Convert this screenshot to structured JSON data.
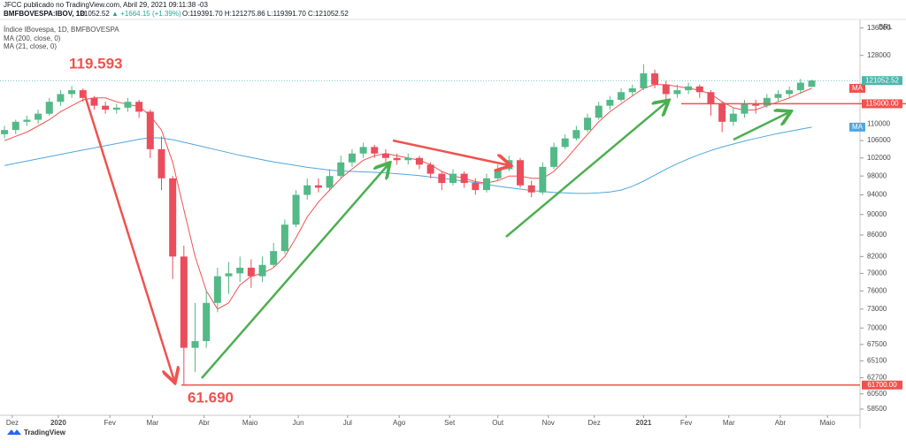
{
  "header": {
    "publisher": "JFCC publicado no TradingView.com, Abril 29, 2021 09:11:38 -03",
    "symbol": "BMFBOVESPA:IBOV, 1D",
    "last": "121052.52",
    "change": "▲ +1664.15 (+1.39%)",
    "ohlc": "O:119391.70 H:121275.86 L:119391.70 C:121052.52"
  },
  "footer": "TradingView",
  "chart_data": {
    "type": "candlestick",
    "title": "Índice IBovespa, 1D, BMFBOVESPA",
    "currency": "BRL",
    "x": [
      0,
      1,
      2,
      3,
      4,
      5,
      6,
      7,
      8,
      9,
      10,
      11,
      12,
      13,
      14,
      15,
      16,
      17,
      18,
      19,
      20,
      21,
      22,
      23,
      24,
      25,
      26,
      27,
      28,
      29,
      30,
      31,
      32,
      33,
      34,
      35,
      36,
      37,
      38,
      39,
      40,
      41,
      42,
      43,
      44,
      45,
      46,
      47,
      48,
      49,
      50,
      51,
      52,
      53,
      54,
      55,
      56,
      57,
      58,
      59,
      60,
      61,
      62,
      63,
      64,
      65,
      66,
      67,
      68,
      69,
      70,
      71,
      72
    ],
    "open": [
      107500,
      108500,
      110500,
      111000,
      112500,
      115500,
      117500,
      118500,
      116500,
      114500,
      113500,
      114000,
      115500,
      113000,
      104000,
      97500,
      82000,
      67000,
      68000,
      74000,
      78500,
      79000,
      80000,
      78500,
      80500,
      83000,
      88000,
      94000,
      96000,
      95500,
      98000,
      101000,
      103000,
      104500,
      103000,
      102000,
      101500,
      102000,
      100500,
      98500,
      96500,
      98500,
      96500,
      95000,
      97500,
      99500,
      101500,
      96000,
      94500,
      100000,
      104500,
      106500,
      108500,
      111500,
      114500,
      116000,
      118000,
      119000,
      123000,
      120000,
      117500,
      118500,
      119500,
      118000,
      115000,
      110500,
      112500,
      115000,
      114500,
      116500,
      117500,
      118500,
      119391.7
    ],
    "high": [
      109500,
      111000,
      112000,
      113500,
      116500,
      118500,
      119593,
      119000,
      117000,
      115500,
      115000,
      116500,
      116000,
      113500,
      107000,
      98000,
      84000,
      74000,
      76000,
      80000,
      81000,
      82000,
      81500,
      82000,
      84500,
      89000,
      95000,
      97500,
      97500,
      99500,
      102500,
      104000,
      105500,
      105000,
      104000,
      103000,
      103000,
      102500,
      101000,
      99000,
      99500,
      99000,
      97500,
      98500,
      100500,
      102500,
      102000,
      97000,
      101000,
      105500,
      107500,
      109500,
      112500,
      115500,
      117000,
      119000,
      120000,
      125500,
      124000,
      121000,
      120000,
      120500,
      120000,
      118500,
      115500,
      114000,
      116000,
      116000,
      117500,
      118500,
      119500,
      121500,
      121275.86
    ],
    "low": [
      106500,
      107500,
      109500,
      110000,
      112000,
      114500,
      116500,
      115500,
      113500,
      112500,
      112500,
      113000,
      111500,
      102000,
      95000,
      78000,
      61690,
      63500,
      67000,
      72500,
      75500,
      77500,
      76500,
      77500,
      80000,
      82500,
      87500,
      93000,
      94500,
      95000,
      97500,
      100000,
      102000,
      102000,
      101000,
      100500,
      100500,
      99500,
      97500,
      95000,
      96000,
      95500,
      94000,
      94500,
      97000,
      99000,
      95500,
      93500,
      94000,
      99500,
      104000,
      106000,
      108000,
      111000,
      113500,
      115500,
      117000,
      118500,
      119000,
      116000,
      116500,
      117500,
      116500,
      112000,
      108000,
      109500,
      111500,
      112500,
      114000,
      115500,
      116500,
      117500,
      119391.7
    ],
    "close": [
      108500,
      110500,
      111000,
      112500,
      115500,
      117500,
      118500,
      116500,
      114500,
      113500,
      114000,
      115500,
      113000,
      104000,
      97500,
      82000,
      67000,
      68000,
      74000,
      78500,
      79000,
      80000,
      78500,
      80500,
      83000,
      88000,
      94000,
      96000,
      95500,
      98000,
      101000,
      103000,
      104500,
      103000,
      102000,
      101500,
      102000,
      100500,
      98500,
      96500,
      98500,
      96500,
      95000,
      97500,
      99500,
      101500,
      96000,
      94500,
      100000,
      104500,
      106500,
      108500,
      111500,
      114500,
      116000,
      118000,
      119000,
      123000,
      120000,
      117500,
      118500,
      119500,
      118000,
      115000,
      110500,
      112500,
      115000,
      114500,
      116500,
      117500,
      118500,
      120500,
      121052.52
    ],
    "last_label": "121052.52",
    "up_color": "#53b987",
    "down_color": "#eb4d5c",
    "series": [
      {
        "name": "MA (200, close, 0)",
        "badge": "MA",
        "color": "#4ea7e0",
        "values": [
          100300,
          100800,
          101300,
          101800,
          102300,
          102800,
          103300,
          103800,
          104300,
          104800,
          105300,
          105800,
          106300,
          106700,
          106600,
          106200,
          105600,
          105000,
          104400,
          103800,
          103200,
          102600,
          102100,
          101600,
          101100,
          100700,
          100300,
          99900,
          99600,
          99300,
          99100,
          99000,
          98900,
          98800,
          98700,
          98500,
          98300,
          98100,
          97800,
          97500,
          97200,
          96900,
          96600,
          96200,
          95800,
          95500,
          95200,
          94900,
          94700,
          94500,
          94400,
          94300,
          94300,
          94400,
          94600,
          95000,
          95800,
          96900,
          98200,
          99500,
          100700,
          101800,
          102800,
          103700,
          104500,
          105200,
          105900,
          106500,
          107100,
          107700,
          108200,
          108700,
          109200
        ]
      },
      {
        "name": "MA (21, close, 0)",
        "badge": "MA",
        "color": "#f0524f",
        "values": [
          106000,
          107000,
          108000,
          109500,
          111000,
          113000,
          114500,
          116000,
          116500,
          116500,
          115500,
          114800,
          114300,
          112000,
          108500,
          101000,
          91000,
          82000,
          76000,
          73000,
          74000,
          77000,
          78500,
          79000,
          80000,
          82000,
          85500,
          89500,
          92500,
          95000,
          97500,
          99500,
          101500,
          102500,
          103000,
          102500,
          102000,
          101500,
          100500,
          99000,
          98000,
          97500,
          96800,
          96500,
          97000,
          98000,
          98000,
          97500,
          97500,
          99000,
          101500,
          104500,
          107500,
          110500,
          113000,
          115000,
          117000,
          119000,
          120000,
          120000,
          119500,
          119000,
          118500,
          117500,
          115500,
          114000,
          113300,
          113500,
          114500,
          115500,
          116500,
          117800,
          119000
        ]
      }
    ],
    "hlines": [
      {
        "value": 61700,
        "label": "61700.00",
        "color": "#f0524f"
      },
      {
        "value": 115000,
        "label": "115000.00",
        "color": "#f0524f"
      }
    ],
    "annotations": [
      "119.593",
      "61.690"
    ],
    "log_scale": true,
    "xlim": [
      -0.4,
      76.3
    ],
    "xticks": [
      {
        "value": 0.7,
        "label": "Dez"
      },
      {
        "value": 4.8,
        "label": "2020"
      },
      {
        "value": 9.4,
        "label": "Fev"
      },
      {
        "value": 13.2,
        "label": "Mar"
      },
      {
        "value": 17.8,
        "label": "Abr"
      },
      {
        "value": 21.9,
        "label": "Maio"
      },
      {
        "value": 26.2,
        "label": "Jun"
      },
      {
        "value": 30.6,
        "label": "Jul"
      },
      {
        "value": 35.2,
        "label": "Ago"
      },
      {
        "value": 39.7,
        "label": "Set"
      },
      {
        "value": 44.0,
        "label": "Out"
      },
      {
        "value": 48.5,
        "label": "Nov"
      },
      {
        "value": 52.6,
        "label": "Dez"
      },
      {
        "value": 57.0,
        "label": "2021"
      },
      {
        "value": 60.8,
        "label": "Fev"
      },
      {
        "value": 64.6,
        "label": "Mar"
      },
      {
        "value": 69.2,
        "label": "Abr"
      },
      {
        "value": 73.4,
        "label": "Maio"
      }
    ],
    "ylim": [
      57700,
      138600
    ],
    "yticks": [
      136000,
      128000,
      110000,
      106000,
      102000,
      98000,
      94000,
      90000,
      86000,
      82000,
      79000,
      76000,
      73000,
      70000,
      67500,
      65100,
      62700,
      60500,
      58500
    ]
  }
}
